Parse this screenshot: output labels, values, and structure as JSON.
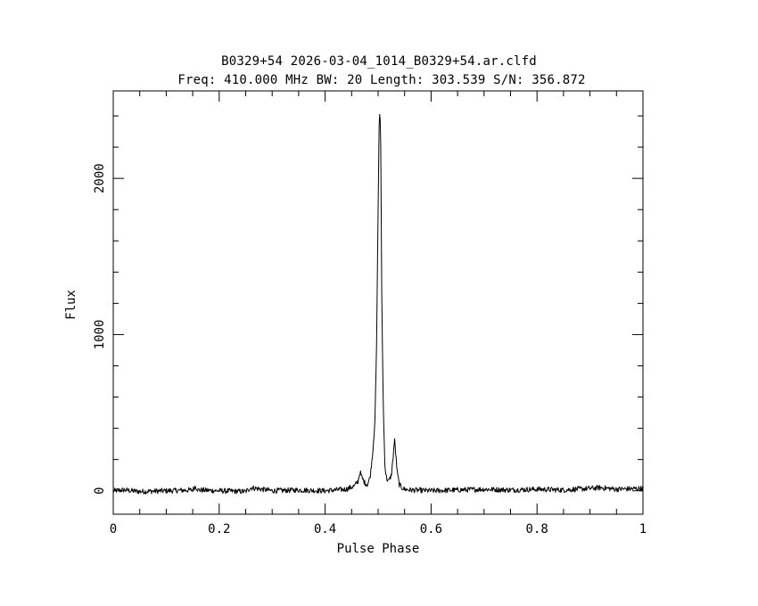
{
  "chart_data": {
    "type": "line",
    "title": "B0329+54 2026-03-04_1014_B0329+54.ar.clfd",
    "subtitle": "Freq: 410.000 MHz BW: 20 Length: 303.539 S/N: 356.872",
    "xlabel": "Pulse Phase",
    "ylabel": "Flux",
    "xlim": [
      0,
      1
    ],
    "ylim": [
      -150,
      2560
    ],
    "grid": false,
    "legend": "none",
    "x_ticks": [
      {
        "value": 0,
        "label": "0"
      },
      {
        "value": 0.2,
        "label": "0.2"
      },
      {
        "value": 0.4,
        "label": "0.4"
      },
      {
        "value": 0.6,
        "label": "0.6"
      },
      {
        "value": 0.8,
        "label": "0.8"
      },
      {
        "value": 1,
        "label": "1"
      }
    ],
    "y_ticks": [
      {
        "value": 0,
        "label": "0"
      },
      {
        "value": 1000,
        "label": "1000"
      },
      {
        "value": 2000,
        "label": "2000"
      }
    ],
    "series": [
      {
        "x": [
          0,
          0.02,
          0.05,
          0.1,
          0.15,
          0.155,
          0.16,
          0.2,
          0.25,
          0.26,
          0.3,
          0.35,
          0.4,
          0.44,
          0.455,
          0.462,
          0.466,
          0.47,
          0.475,
          0.48,
          0.485,
          0.49,
          0.494,
          0.497,
          0.5,
          0.502,
          0.5035,
          0.505,
          0.507,
          0.51,
          0.513,
          0.516,
          0.52,
          0.525,
          0.528,
          0.531,
          0.533,
          0.536,
          0.54,
          0.545,
          0.55,
          0.56,
          0.6,
          0.65,
          0.7,
          0.75,
          0.8,
          0.85,
          0.9,
          0.92,
          0.95,
          1
        ],
        "y": [
          0,
          5,
          -5,
          0,
          5,
          30,
          5,
          0,
          -5,
          20,
          0,
          5,
          0,
          10,
          30,
          60,
          120,
          80,
          50,
          40,
          90,
          250,
          450,
          900,
          1800,
          2350,
          2450,
          2200,
          1200,
          500,
          150,
          80,
          60,
          100,
          200,
          330,
          250,
          120,
          40,
          20,
          10,
          5,
          0,
          5,
          10,
          5,
          10,
          5,
          15,
          20,
          10,
          15
        ],
        "color": "#000000"
      }
    ]
  }
}
